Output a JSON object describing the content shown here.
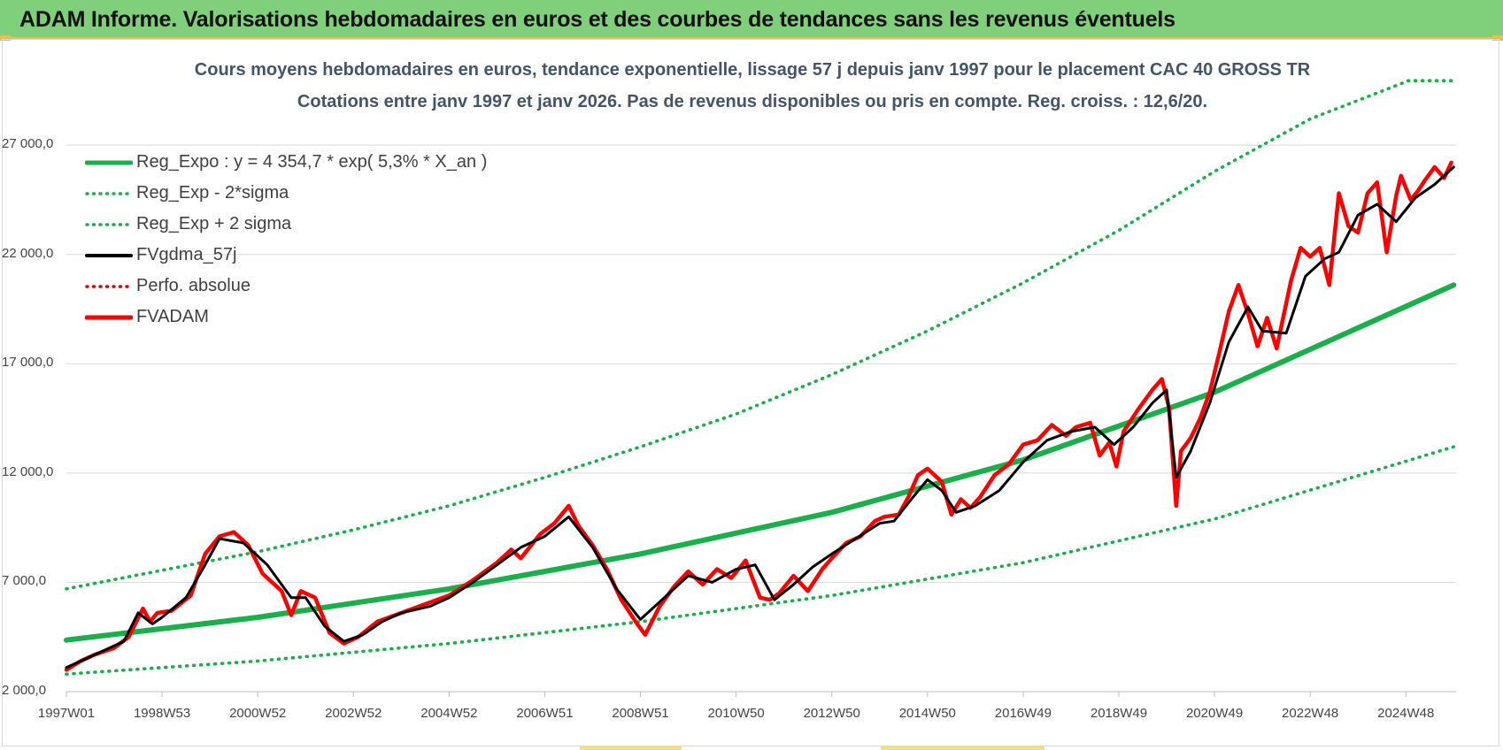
{
  "banner": {
    "title": "ADAM Informe. Valorisations hebdomadaires en euros et des courbes de tendances sans les revenus éventuels"
  },
  "colors": {
    "banner_bg": "#7fcf7b",
    "banner_border": "#e7c24a",
    "reg_expo": "#19b04b",
    "sigma_bands": "#19b04b",
    "fvgdma": "#000000",
    "perfo": "#e00000",
    "fvadam": "#ff0000",
    "title_text": "#44546a"
  },
  "chart_data": {
    "type": "line",
    "title": "Cours moyens hebdomadaires en euros, tendance exponentielle, lissage 57 j depuis janv 1997  pour le placement CAC 40 GROSS TR",
    "subtitle": "Cotations entre janv 1997 et janv 2026. Pas de revenus disponibles ou pris en compte. Reg. croiss. : 12,6/20.",
    "xlabel": "",
    "ylabel": "",
    "x_range": [
      1997.0,
      2026.05
    ],
    "ylim": [
      2000,
      30000
    ],
    "yticks": [
      2000,
      7000,
      12000,
      17000,
      22000,
      27000
    ],
    "ytick_labels": [
      "2 000,0",
      "7 000,0",
      "12 000,0",
      "17 000,0",
      "22 000,0",
      "27 000,0"
    ],
    "xticks": [
      1997.0,
      1999.0,
      2001.0,
      2003.0,
      2005.0,
      2007.0,
      2009.0,
      2011.0,
      2013.0,
      2015.0,
      2017.0,
      2019.0,
      2021.0,
      2023.0,
      2025.0
    ],
    "xtick_labels": [
      "1997W01",
      "1998W53",
      "2000W52",
      "2002W52",
      "2004W52",
      "2006W51",
      "2008W51",
      "2010W50",
      "2012W50",
      "2014W50",
      "2016W49",
      "2018W49",
      "2020W49",
      "2022W48",
      "2024W48"
    ],
    "grid": "horizontal",
    "legend_position": "top-left",
    "regression": {
      "a": 4354.7,
      "rate": 0.053
    },
    "series": [
      {
        "name": "Reg_Expo : y = 4 354,7 * exp( 5,3% *  X_an )",
        "style": "solid-thick",
        "color": "#19b04b",
        "x": [
          1997,
          2001,
          2005,
          2009,
          2013,
          2017,
          2021,
          2026
        ],
        "values": [
          4360,
          5400,
          6700,
          8300,
          10200,
          12600,
          15700,
          20600
        ]
      },
      {
        "name": "Reg_Exp - 2*sigma",
        "style": "dotted",
        "color": "#19b04b",
        "x": [
          1997,
          2001,
          2005,
          2009,
          2013,
          2017,
          2021,
          2026
        ],
        "values": [
          2800,
          3400,
          4200,
          5200,
          6400,
          7900,
          9900,
          13200
        ]
      },
      {
        "name": "Reg_Exp + 2 sigma",
        "style": "dotted",
        "color": "#19b04b",
        "x": [
          1997,
          1999,
          2001,
          2003,
          2005,
          2007,
          2009,
          2011,
          2013,
          2015,
          2017,
          2019,
          2021,
          2023,
          2025,
          2025.05,
          2026
        ],
        "values": [
          6700,
          7550,
          8400,
          9400,
          10500,
          11800,
          13200,
          14700,
          16500,
          18500,
          20700,
          23100,
          25800,
          28200,
          29900,
          29950,
          29950
        ]
      },
      {
        "name": "FVgdma_57j",
        "style": "solid",
        "color": "#000000",
        "x": [
          1997.0,
          1997.5,
          1998.2,
          1998.5,
          1998.8,
          1999.0,
          1999.5,
          1999.9,
          2000.2,
          2000.7,
          2001.2,
          2001.7,
          2002.0,
          2002.4,
          2002.8,
          2003.2,
          2003.6,
          2004.0,
          2004.6,
          2005.0,
          2005.5,
          2006.0,
          2006.5,
          2007.0,
          2007.5,
          2008.0,
          2008.5,
          2009.0,
          2009.5,
          2010.0,
          2010.5,
          2011.0,
          2011.4,
          2011.8,
          2012.2,
          2012.6,
          2013.0,
          2013.5,
          2014.0,
          2014.3,
          2014.7,
          2015.0,
          2015.3,
          2015.6,
          2016.0,
          2016.5,
          2017.0,
          2017.5,
          2018.0,
          2018.5,
          2018.9,
          2019.3,
          2019.7,
          2020.0,
          2020.2,
          2020.5,
          2020.9,
          2021.3,
          2021.7,
          2022.0,
          2022.5,
          2022.9,
          2023.3,
          2023.6,
          2024.0,
          2024.4,
          2024.8,
          2025.2,
          2025.6,
          2026.0
        ],
        "values": [
          3100,
          3600,
          4300,
          5600,
          5100,
          5400,
          6300,
          7800,
          9000,
          8800,
          7800,
          6300,
          6300,
          5000,
          4300,
          4600,
          5200,
          5600,
          5900,
          6300,
          7000,
          7800,
          8600,
          9100,
          10000,
          8600,
          6700,
          5300,
          6300,
          7300,
          7000,
          7600,
          7800,
          6200,
          6900,
          7700,
          8300,
          9000,
          9700,
          9800,
          10900,
          11700,
          11200,
          10200,
          10500,
          11200,
          12500,
          13500,
          13900,
          14100,
          13300,
          14100,
          15200,
          15800,
          11800,
          13000,
          15200,
          18000,
          19600,
          18500,
          18400,
          21000,
          21800,
          22100,
          23800,
          24300,
          23500,
          24600,
          25200,
          26000
        ]
      },
      {
        "name": "Perfo. absolue",
        "style": "dotted",
        "color": "#e00000",
        "x": [],
        "values": []
      },
      {
        "name": "FVADAM",
        "style": "solid-thick",
        "color": "#ff0000",
        "x": [
          1997.0,
          1997.3,
          1997.6,
          1998.0,
          1998.3,
          1998.6,
          1998.75,
          1998.9,
          1999.2,
          1999.6,
          1999.9,
          2000.2,
          2000.5,
          2000.8,
          2001.1,
          2001.5,
          2001.7,
          2001.9,
          2002.2,
          2002.5,
          2002.8,
          2003.1,
          2003.5,
          2004.0,
          2004.5,
          2005.0,
          2005.5,
          2006.0,
          2006.3,
          2006.5,
          2006.9,
          2007.2,
          2007.5,
          2007.7,
          2008.0,
          2008.3,
          2008.6,
          2008.9,
          2009.1,
          2009.4,
          2009.7,
          2010.0,
          2010.3,
          2010.6,
          2010.9,
          2011.2,
          2011.5,
          2011.7,
          2011.9,
          2012.2,
          2012.5,
          2012.8,
          2013.0,
          2013.3,
          2013.6,
          2013.9,
          2014.1,
          2014.4,
          2014.6,
          2014.8,
          2015.0,
          2015.3,
          2015.5,
          2015.7,
          2015.9,
          2016.1,
          2016.4,
          2016.7,
          2017.0,
          2017.3,
          2017.6,
          2017.9,
          2018.1,
          2018.4,
          2018.6,
          2018.8,
          2018.95,
          2019.1,
          2019.4,
          2019.7,
          2019.9,
          2020.05,
          2020.2,
          2020.3,
          2020.5,
          2020.7,
          2020.9,
          2021.1,
          2021.3,
          2021.5,
          2021.7,
          2021.9,
          2022.1,
          2022.3,
          2022.6,
          2022.8,
          2023.0,
          2023.2,
          2023.4,
          2023.6,
          2023.8,
          2024.0,
          2024.2,
          2024.4,
          2024.6,
          2024.8,
          2024.9,
          2025.1,
          2025.25,
          2025.4,
          2025.6,
          2025.8,
          2025.95
        ],
        "values": [
          3000,
          3400,
          3700,
          4000,
          4500,
          5800,
          5200,
          5600,
          5700,
          6400,
          8300,
          9100,
          9300,
          8700,
          7400,
          6600,
          5500,
          6600,
          6300,
          4700,
          4200,
          4500,
          5200,
          5600,
          6000,
          6400,
          7100,
          7900,
          8500,
          8100,
          9200,
          9700,
          10500,
          9600,
          8700,
          7600,
          6200,
          5200,
          4600,
          5900,
          6800,
          7500,
          6900,
          7600,
          7200,
          8000,
          6300,
          6200,
          6500,
          7300,
          6600,
          7600,
          8100,
          8800,
          9100,
          9800,
          10000,
          10100,
          10900,
          11900,
          12200,
          11600,
          10100,
          10800,
          10400,
          10900,
          11900,
          12400,
          13300,
          13500,
          14200,
          13700,
          14100,
          14300,
          12800,
          13400,
          12300,
          13900,
          14900,
          15800,
          16300,
          15000,
          10500,
          13000,
          13600,
          14500,
          15700,
          17500,
          19400,
          20600,
          19300,
          17800,
          19100,
          17700,
          20800,
          22300,
          21900,
          22300,
          20600,
          24800,
          23300,
          23000,
          24800,
          25300,
          22100,
          24700,
          25600,
          24500,
          24900,
          25400,
          26000,
          25500,
          26200
        ]
      }
    ]
  }
}
